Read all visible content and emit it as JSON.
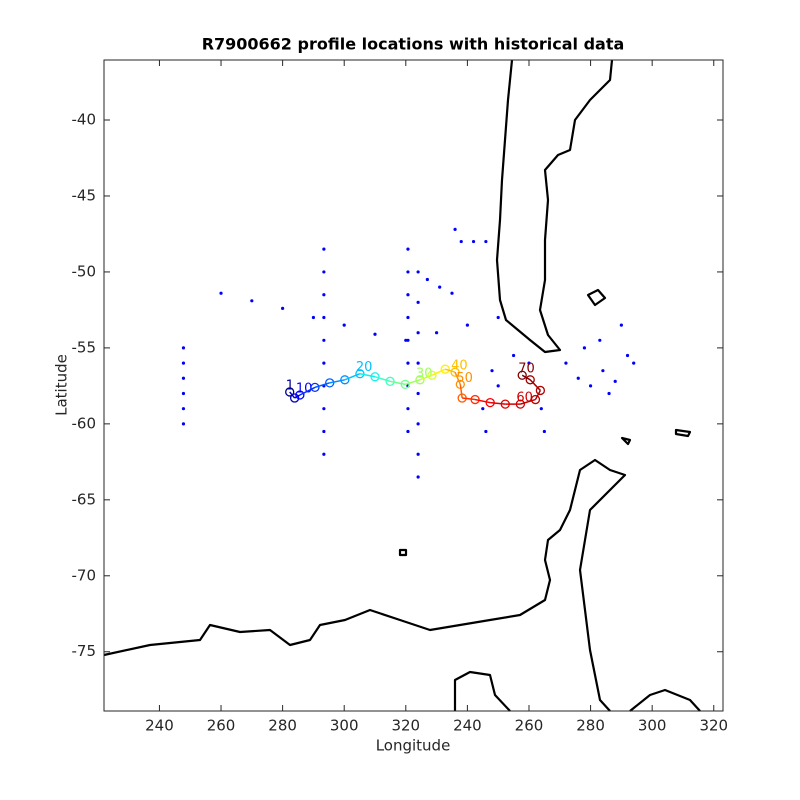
{
  "chart_data": {
    "type": "scatter",
    "title": "R7900662 profile locations with historical data",
    "x_label": "Longitude",
    "y_label": "Latitude",
    "xlim": [
      222,
      423
    ],
    "ylim": [
      -78.9,
      -36.05
    ],
    "xticks": [
      240,
      260,
      280,
      300,
      320,
      {
        "value": 340,
        "label": "240"
      },
      {
        "value": 360,
        "label": "260"
      },
      {
        "value": 380,
        "label": "280"
      },
      {
        "value": 400,
        "label": "300"
      },
      {
        "value": 420,
        "label": "320"
      }
    ],
    "yticks": [
      -40,
      -45,
      -50,
      -55,
      -60,
      -65,
      -70,
      -75
    ],
    "historical": {
      "color": "#0000ff",
      "x": [
        247.8,
        247.8,
        247.8,
        247.8,
        247.8,
        247.8,
        293.4,
        293.4,
        293.4,
        293.4,
        293.4,
        293.4,
        293.4,
        293.4,
        293.4,
        293.4,
        320.7,
        320.7,
        320.7,
        320.7,
        320.7,
        320.7,
        320.7,
        320.7,
        320.7,
        324.0,
        324.0,
        324.0,
        324.0,
        324.0,
        324.0,
        324.0,
        324.0,
        260,
        270,
        280,
        290,
        300,
        310,
        320,
        330,
        340,
        350,
        327,
        331,
        335,
        338,
        342,
        346,
        336,
        372,
        376,
        380,
        384,
        388,
        392,
        386,
        378,
        390,
        394,
        383,
        345,
        346,
        350,
        355,
        360,
        364,
        365,
        348
      ],
      "y": [
        -55,
        -56,
        -57,
        -58,
        -59,
        -60,
        -48.5,
        -50,
        -51.5,
        -53,
        -54.5,
        -56,
        -57.5,
        -59,
        -60.5,
        -62,
        -48.5,
        -50,
        -51.5,
        -53,
        -54.5,
        -56,
        -57.5,
        -59,
        -60.5,
        -50,
        -52,
        -54,
        -56,
        -58,
        -60,
        -62,
        -63.5,
        -51.4,
        -51.9,
        -52.4,
        -53,
        -53.5,
        -54.1,
        -54.5,
        -54,
        -53.5,
        -53,
        -50.5,
        -51,
        -51.4,
        -48,
        -48,
        -48,
        -47.2,
        -56,
        -57,
        -57.5,
        -56.5,
        -57.2,
        -55.5,
        -58,
        -55,
        -53.5,
        -56,
        -54.5,
        -59,
        -60.5,
        -57.5,
        -55.5,
        -56,
        -59,
        -60.5,
        -56.5
      ]
    },
    "profiles": {
      "x": [
        282.3,
        283.9,
        285.6,
        290.5,
        295.3,
        300.2,
        305.1,
        310.0,
        314.9,
        319.8,
        324.6,
        328.5,
        332.8,
        336.0,
        337.7,
        338.3,
        342.5,
        347.4,
        352.3,
        357.2,
        362.1,
        363.7,
        360.4,
        357.8
      ],
      "y": [
        -57.9,
        -58.3,
        -58.1,
        -57.6,
        -57.3,
        -57.1,
        -56.7,
        -56.9,
        -57.2,
        -57.4,
        -57.1,
        -56.8,
        -56.4,
        -56.6,
        -57.4,
        -58.3,
        -58.4,
        -58.6,
        -58.7,
        -58.7,
        -58.4,
        -57.8,
        -57.1,
        -56.8
      ],
      "labels": [
        "1",
        null,
        "10",
        null,
        null,
        null,
        "20",
        null,
        null,
        null,
        "30",
        null,
        null,
        "40",
        "50",
        null,
        null,
        null,
        null,
        "60",
        null,
        null,
        null,
        "70"
      ],
      "colors": [
        "#00008f",
        "#0000c0",
        "#0000ff",
        "#0030ff",
        "#0060ff",
        "#0090ff",
        "#00c0ff",
        "#10f0ef",
        "#40ffbf",
        "#70ff8f",
        "#a0ff60",
        "#d0ff30",
        "#ffef00",
        "#ffc000",
        "#ff9000",
        "#ff6000",
        "#ff3000",
        "#ff0000",
        "#e00000",
        "#d00000",
        "#c00000",
        "#b00000",
        "#a00000",
        "#800000"
      ]
    }
  }
}
